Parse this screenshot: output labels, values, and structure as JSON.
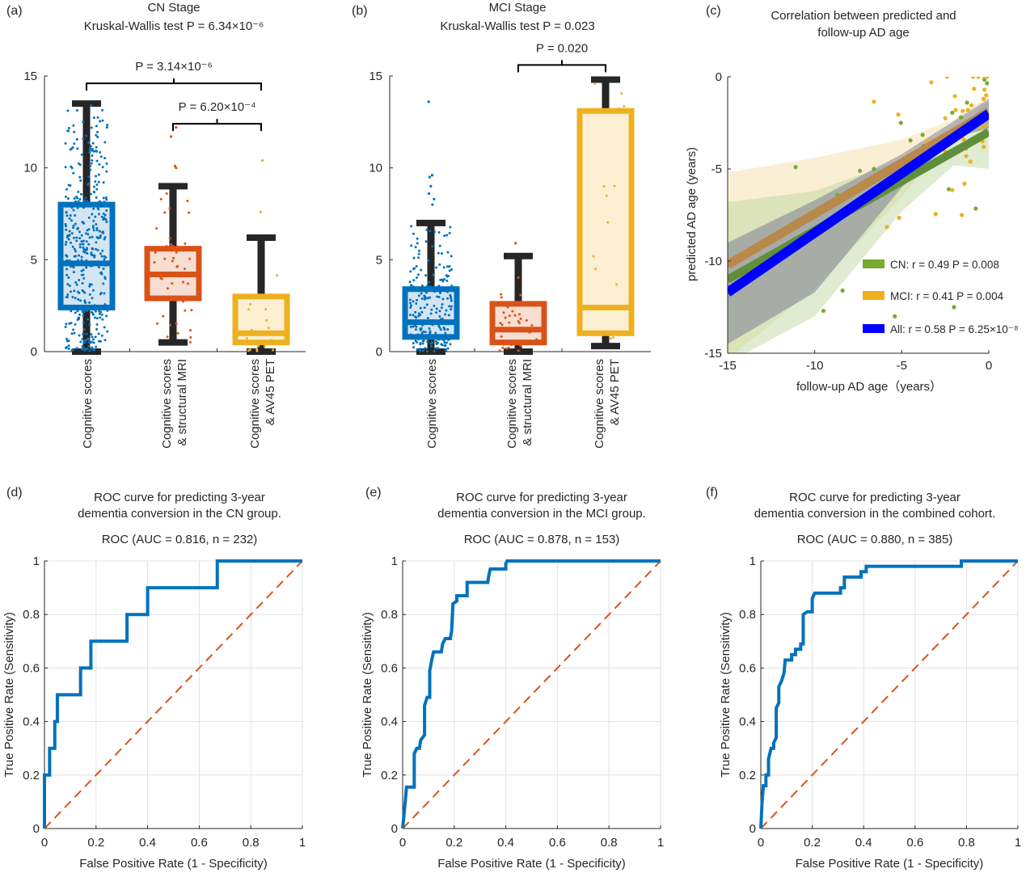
{
  "colors": {
    "blue": "#0072BD",
    "orange": "#D95319",
    "yellow": "#EDB120",
    "green": "#77AC30",
    "all": "#0000FF",
    "whisker": "#262626",
    "diag": "#D95319"
  },
  "chart_data": [
    {
      "panel_label": "(a)",
      "type": "bar",
      "subtype": "boxplot",
      "title": [
        "CN Stage",
        "Kruskal-Wallis test P = 6.34×10⁻⁶"
      ],
      "ylim": [
        0,
        15
      ],
      "yticks": [
        "0",
        "5",
        "10",
        "15"
      ],
      "categories": [
        [
          "Cognitive scores"
        ],
        [
          "Cognitive scores",
          "& structural MRI"
        ],
        [
          "Cognitive scores",
          "& AV45 PET"
        ]
      ],
      "boxes": [
        {
          "whisker_low": 0,
          "q1": 2.4,
          "median": 4.8,
          "q3": 8.0,
          "whisker_high": 13.5,
          "outliers": [],
          "color": "blue"
        },
        {
          "whisker_low": 0.5,
          "q1": 2.9,
          "median": 4.2,
          "q3": 5.6,
          "whisker_high": 9.0,
          "outliers": [
            10.0,
            10.1,
            11.7,
            12.2
          ],
          "color": "orange"
        },
        {
          "whisker_low": 0,
          "q1": 0.5,
          "median": 1.0,
          "q3": 3.0,
          "whisker_high": 6.2,
          "outliers": [
            7.6,
            10.4
          ],
          "color": "yellow"
        }
      ],
      "brackets": [
        {
          "from": 0,
          "to": 2,
          "level": 14.6,
          "label": "P = 3.14×10⁻⁶"
        },
        {
          "from": 1,
          "to": 2,
          "level": 12.4,
          "label": "P = 6.20×10⁻⁴"
        }
      ],
      "grid": false
    },
    {
      "panel_label": "(b)",
      "type": "bar",
      "subtype": "boxplot",
      "title": [
        "MCI Stage",
        "Kruskal-Wallis test P = 0.023"
      ],
      "ylim": [
        0,
        15
      ],
      "yticks": [
        "0",
        "5",
        "10",
        "15"
      ],
      "categories": [
        [
          "Cognitive scores"
        ],
        [
          "Cognitive scores",
          "& structural MRI"
        ],
        [
          "Cognitive scores",
          "& AV45 PET"
        ]
      ],
      "boxes": [
        {
          "whisker_low": 0,
          "q1": 0.8,
          "median": 1.6,
          "q3": 3.4,
          "whisker_high": 7.0,
          "outliers": [
            8.0,
            8.3,
            8.6,
            9.0,
            9.5,
            9.6,
            13.6
          ],
          "color": "blue"
        },
        {
          "whisker_low": 0,
          "q1": 0.5,
          "median": 1.2,
          "q3": 2.6,
          "whisker_high": 5.2,
          "outliers": [
            5.9
          ],
          "color": "orange"
        },
        {
          "whisker_low": 0.3,
          "q1": 1.0,
          "median": 2.4,
          "q3": 13.1,
          "whisker_high": 14.8,
          "outliers": [],
          "color": "yellow"
        }
      ],
      "brackets": [
        {
          "from": 1,
          "to": 2,
          "level": 15.6,
          "label": "P = 0.020"
        }
      ],
      "grid": false
    },
    {
      "panel_label": "(c)",
      "type": "scatter",
      "title": [
        "Correlation between predicted and",
        "follow-up AD age"
      ],
      "xlabel": "follow-up AD age（years）",
      "ylabel": "predicted AD age (years)",
      "xlim": [
        -15,
        0
      ],
      "ylim": [
        -15,
        0
      ],
      "xticks": [
        "-15",
        "-10",
        "-5",
        "0"
      ],
      "yticks": [
        "0",
        "-5",
        "-10",
        "-15"
      ],
      "legend_position": "bottom-right",
      "series": [
        {
          "name": "CN: r = 0.49 P = 0.008",
          "color": "green",
          "points": [
            [
              -11.1,
              -4.9
            ],
            [
              -7.4,
              -5.1
            ],
            [
              -6.6,
              -5.0
            ],
            [
              -8.7,
              -6.4
            ],
            [
              -10.1,
              -7.5
            ],
            [
              -8.4,
              -11.6
            ],
            [
              -9.5,
              -12.7
            ],
            [
              -5.4,
              -13.0
            ],
            [
              -2.0,
              -12.5
            ],
            [
              -0.75,
              -7.15
            ],
            [
              -2.3,
              -6.1
            ],
            [
              -5.05,
              -2.5
            ],
            [
              -4.5,
              -3.45
            ],
            [
              -3.8,
              -3.15
            ],
            [
              -3.75,
              -3.75
            ],
            [
              -2.1,
              -1.95
            ],
            [
              -1.6,
              -2.2
            ],
            [
              -1.25,
              -1.4
            ],
            [
              -0.25,
              -0.15
            ],
            [
              -0.1,
              -0.35
            ],
            [
              -2.3,
              -4.3
            ]
          ],
          "fit": [
            [
              -15,
              -11.0
            ],
            [
              0,
              -3.0
            ]
          ],
          "ci_x": [
            -15,
            -10,
            -5,
            -2,
            0
          ],
          "ci_upper": [
            -6.8,
            -6.2,
            -4.5,
            -3.1,
            -1.3
          ],
          "ci_lower": [
            -15.5,
            -13.0,
            -7.3,
            -4.8,
            -5.0
          ]
        },
        {
          "name": "MCI: r = 0.41 P = 0.004",
          "color": "yellow",
          "points": [
            [
              -6.6,
              -1.35
            ],
            [
              -5.2,
              -2.05
            ],
            [
              -3.3,
              -0.3
            ],
            [
              -2.4,
              0
            ],
            [
              -1.95,
              -1.05
            ],
            [
              -2.5,
              -2.25
            ],
            [
              -1.9,
              -1.8
            ],
            [
              -1.5,
              -1.85
            ],
            [
              -1.2,
              -1.8
            ],
            [
              -1.0,
              -1.55
            ],
            [
              -0.85,
              -0.65
            ],
            [
              -0.9,
              0
            ],
            [
              -0.6,
              0
            ],
            [
              -0.25,
              0
            ],
            [
              -0.05,
              0
            ],
            [
              -0.25,
              -0.7
            ],
            [
              -0.15,
              -1.0
            ],
            [
              -0.3,
              -1.2
            ],
            [
              -0.45,
              -2.75
            ],
            [
              -0.15,
              -2.65
            ],
            [
              -0.35,
              -3.5
            ],
            [
              -0.3,
              -3.8
            ],
            [
              -1.45,
              -3.4
            ],
            [
              -1.3,
              -3.9
            ],
            [
              -1.3,
              -4.3
            ],
            [
              -1.05,
              -4.6
            ],
            [
              -1.4,
              -5.8
            ],
            [
              -2.1,
              -6.15
            ],
            [
              -2.5,
              -4.05
            ],
            [
              -3.05,
              -7.45
            ],
            [
              -1.55,
              -7.5
            ],
            [
              -5.15,
              -7.65
            ],
            [
              -5.85,
              -8.15
            ],
            [
              -3.5,
              -3.5
            ]
          ],
          "fit": [
            [
              -15,
              -10.2
            ],
            [
              0,
              -1.9
            ]
          ],
          "ci_x": [
            -15,
            -10,
            -5,
            -2,
            0
          ],
          "ci_upper": [
            -5.2,
            -4.4,
            -3.4,
            -2.3,
            -1.0
          ],
          "ci_lower": [
            -15.3,
            -11.5,
            -6.5,
            -3.1,
            -2.9
          ]
        },
        {
          "name": "All: r = 0.58 P = 6.25×10⁻⁸",
          "color": "all",
          "points": [],
          "fit": [
            [
              -15,
              -11.7
            ],
            [
              0,
              -2.0
            ]
          ],
          "ci_x": [
            -15,
            -10,
            -5,
            -2,
            0
          ],
          "ci_upper": [
            -9.0,
            -6.7,
            -4.2,
            -2.4,
            -1.2
          ],
          "ci_lower": [
            -14.5,
            -11.7,
            -6.0,
            -3.3,
            -2.8
          ]
        }
      ],
      "grid": false
    },
    {
      "panel_label": "(d)",
      "type": "line",
      "title": [
        "ROC curve for predicting 3-year",
        "dementia conversion in the CN group."
      ],
      "subtitle": "ROC (AUC = 0.816, n = 232)",
      "xlabel": "False Positive Rate (1 - Specificity)",
      "ylabel": "True Positive Rate (Sensitivity)",
      "xlim": [
        0,
        1
      ],
      "ylim": [
        0,
        1
      ],
      "ticks": [
        "0",
        "0.2",
        "0.4",
        "0.6",
        "0.8",
        "1"
      ],
      "grid": true,
      "roc": [
        [
          0,
          0
        ],
        [
          0,
          0.2
        ],
        [
          0.02,
          0.2
        ],
        [
          0.02,
          0.3
        ],
        [
          0.04,
          0.3
        ],
        [
          0.04,
          0.4
        ],
        [
          0.05,
          0.4
        ],
        [
          0.05,
          0.5
        ],
        [
          0.14,
          0.5
        ],
        [
          0.14,
          0.6
        ],
        [
          0.18,
          0.6
        ],
        [
          0.18,
          0.7
        ],
        [
          0.32,
          0.7
        ],
        [
          0.32,
          0.8
        ],
        [
          0.4,
          0.8
        ],
        [
          0.4,
          0.9
        ],
        [
          0.67,
          0.9
        ],
        [
          0.67,
          1
        ],
        [
          1,
          1
        ]
      ],
      "chance": [
        [
          0,
          0
        ],
        [
          1,
          1
        ]
      ]
    },
    {
      "panel_label": "(e)",
      "type": "line",
      "title": [
        "ROC curve for predicting 3-year",
        "dementia conversion in the MCI group."
      ],
      "subtitle": "ROC (AUC = 0.878, n = 153)",
      "xlabel": "False Positive Rate (1 - Specificity)",
      "ylabel": "True Positive Rate (Sensitivity)",
      "xlim": [
        0,
        1
      ],
      "ylim": [
        0,
        1
      ],
      "ticks": [
        "0",
        "0.2",
        "0.4",
        "0.6",
        "0.8",
        "1"
      ],
      "grid": true,
      "roc": [
        [
          0,
          0
        ],
        [
          0.01,
          0.1
        ],
        [
          0.015,
          0.155
        ],
        [
          0.045,
          0.155
        ],
        [
          0.045,
          0.28
        ],
        [
          0.055,
          0.3
        ],
        [
          0.065,
          0.3
        ],
        [
          0.07,
          0.33
        ],
        [
          0.085,
          0.35
        ],
        [
          0.085,
          0.46
        ],
        [
          0.095,
          0.49
        ],
        [
          0.105,
          0.49
        ],
        [
          0.105,
          0.59
        ],
        [
          0.115,
          0.64
        ],
        [
          0.12,
          0.66
        ],
        [
          0.15,
          0.66
        ],
        [
          0.155,
          0.69
        ],
        [
          0.165,
          0.71
        ],
        [
          0.185,
          0.71
        ],
        [
          0.19,
          0.74
        ],
        [
          0.195,
          0.84
        ],
        [
          0.21,
          0.85
        ],
        [
          0.21,
          0.87
        ],
        [
          0.25,
          0.87
        ],
        [
          0.25,
          0.92
        ],
        [
          0.33,
          0.92
        ],
        [
          0.335,
          0.95
        ],
        [
          0.34,
          0.97
        ],
        [
          0.4,
          0.97
        ],
        [
          0.4,
          0.99
        ],
        [
          0.405,
          1
        ],
        [
          1,
          1
        ]
      ],
      "chance": [
        [
          0,
          0
        ],
        [
          1,
          1
        ]
      ]
    },
    {
      "panel_label": "(f)",
      "type": "line",
      "title": [
        "ROC curve for predicting 3-year",
        "dementia conversion in the combined cohort."
      ],
      "subtitle": "ROC (AUC = 0.880, n = 385)",
      "xlabel": "False Positive Rate (1 - Specificity)",
      "ylabel": "True Positive Rate (Sensitivity)",
      "xlim": [
        0,
        1
      ],
      "ylim": [
        0,
        1
      ],
      "ticks": [
        "0",
        "0.2",
        "0.4",
        "0.6",
        "0.8",
        "1"
      ],
      "grid": true,
      "roc": [
        [
          0,
          0
        ],
        [
          0.005,
          0.1
        ],
        [
          0.01,
          0.16
        ],
        [
          0.02,
          0.16
        ],
        [
          0.02,
          0.2
        ],
        [
          0.03,
          0.2
        ],
        [
          0.03,
          0.26
        ],
        [
          0.04,
          0.3
        ],
        [
          0.05,
          0.3
        ],
        [
          0.05,
          0.32
        ],
        [
          0.06,
          0.34
        ],
        [
          0.06,
          0.45
        ],
        [
          0.07,
          0.47
        ],
        [
          0.07,
          0.53
        ],
        [
          0.08,
          0.55
        ],
        [
          0.09,
          0.58
        ],
        [
          0.095,
          0.63
        ],
        [
          0.12,
          0.63
        ],
        [
          0.12,
          0.65
        ],
        [
          0.135,
          0.65
        ],
        [
          0.135,
          0.67
        ],
        [
          0.155,
          0.67
        ],
        [
          0.155,
          0.69
        ],
        [
          0.165,
          0.69
        ],
        [
          0.165,
          0.8
        ],
        [
          0.18,
          0.81
        ],
        [
          0.2,
          0.81
        ],
        [
          0.2,
          0.86
        ],
        [
          0.21,
          0.88
        ],
        [
          0.31,
          0.88
        ],
        [
          0.31,
          0.9
        ],
        [
          0.325,
          0.9
        ],
        [
          0.325,
          0.94
        ],
        [
          0.39,
          0.94
        ],
        [
          0.39,
          0.96
        ],
        [
          0.41,
          0.96
        ],
        [
          0.41,
          0.98
        ],
        [
          0.78,
          0.98
        ],
        [
          0.78,
          1
        ],
        [
          1,
          1
        ]
      ],
      "chance": [
        [
          0,
          0
        ],
        [
          1,
          1
        ]
      ]
    }
  ]
}
